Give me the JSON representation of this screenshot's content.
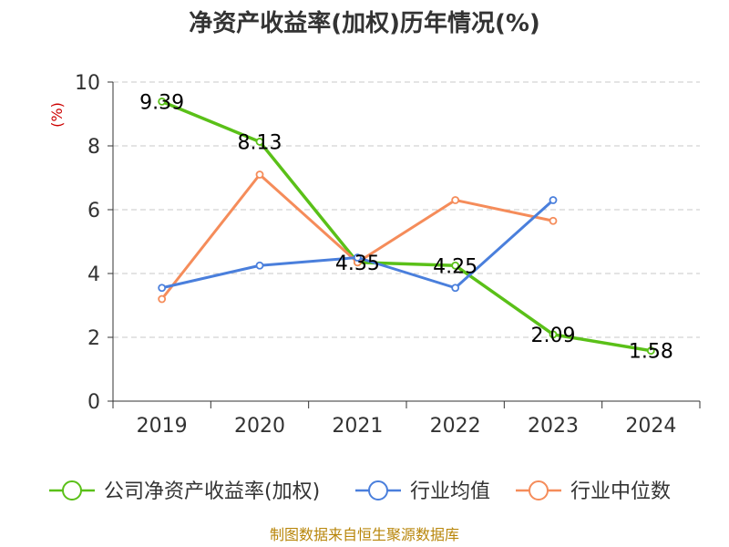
{
  "chart_data": {
    "type": "line",
    "title": "净资产收益率(加权)历年情况(%)",
    "ylabel": "(%)",
    "xlabel": "",
    "categories": [
      "2019",
      "2020",
      "2021",
      "2022",
      "2023",
      "2024"
    ],
    "ylim": [
      0,
      10
    ],
    "yticks": [
      "0",
      "2",
      "4",
      "6",
      "8",
      "10"
    ],
    "grid": true,
    "legend_position": "bottom",
    "series": [
      {
        "name": "公司净资产收益率(加权)",
        "color": "#5ac018",
        "values": [
          9.39,
          8.13,
          4.35,
          4.25,
          2.09,
          1.58
        ],
        "labels": [
          "9.39",
          "8.13",
          "4.35",
          "4.25",
          "2.09",
          "1.58"
        ]
      },
      {
        "name": "行业均值",
        "color": "#4a7fdc",
        "values": [
          3.55,
          4.25,
          4.5,
          3.55,
          6.3,
          null
        ],
        "labels": []
      },
      {
        "name": "行业中位数",
        "color": "#f58c5a",
        "values": [
          3.2,
          7.1,
          4.35,
          6.3,
          5.65,
          null
        ],
        "labels": []
      }
    ],
    "source": "制图数据来自恒生聚源数据库"
  }
}
